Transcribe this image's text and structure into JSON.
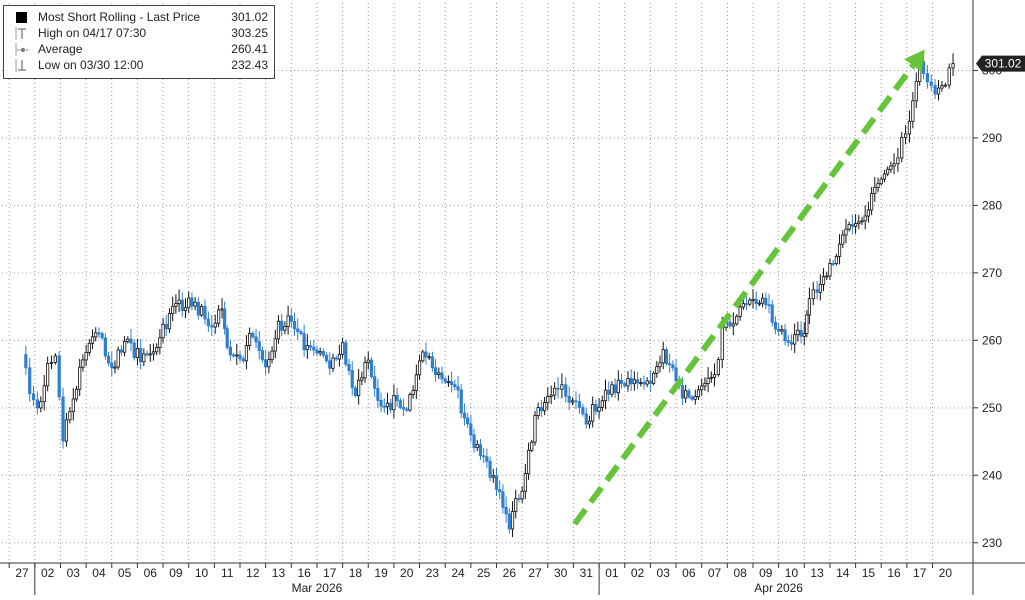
{
  "legend": {
    "series_label": "Most Short Rolling - Last Price",
    "series_value": "301.02",
    "high_label": "High on 04/17 07:30",
    "high_value": "303.25",
    "avg_label": "Average",
    "avg_value": "260.41",
    "low_label": "Low on 03/30 12:00",
    "low_value": "232.43"
  },
  "last_price_tag": "301.02",
  "colors": {
    "up_candle": "#111111",
    "down_candle": "#2f7fd0",
    "arrow": "#66c43a",
    "grid": "#9a9a9a",
    "tag_bg": "#222222"
  },
  "chart_data": {
    "type": "line",
    "title": "",
    "xlabel": "",
    "ylabel": "",
    "ylim": [
      227,
      310
    ],
    "yticks": [
      230,
      240,
      250,
      260,
      270,
      280,
      290,
      300
    ],
    "x_ticks": [
      "27",
      "02",
      "03",
      "04",
      "05",
      "06",
      "09",
      "10",
      "11",
      "12",
      "13",
      "16",
      "17",
      "18",
      "19",
      "20",
      "23",
      "24",
      "25",
      "26",
      "27",
      "30",
      "31",
      "01",
      "02",
      "03",
      "06",
      "07",
      "08",
      "09",
      "10",
      "13",
      "14",
      "15",
      "16",
      "17",
      "20"
    ],
    "month_labels": [
      {
        "label": "Mar 2026",
        "start_index": 1,
        "end_index": 22
      },
      {
        "label": "Apr 2026",
        "start_index": 23,
        "end_index": 36
      }
    ],
    "series": [
      {
        "name": "Most Short Rolling - Last Price",
        "x": [
          0,
          0.3,
          0.6,
          1.0,
          1.3,
          1.6,
          2.0,
          2.5,
          3.0,
          3.5,
          4.0,
          4.5,
          5.0,
          5.5,
          6.0,
          6.5,
          7.0,
          7.4,
          7.8,
          8.0,
          8.5,
          9.0,
          9.5,
          10.0,
          10.5,
          11.0,
          11.5,
          12.0,
          12.5,
          13.0,
          13.5,
          14.0,
          14.5,
          15.0,
          15.5,
          16.0,
          16.5,
          17.0,
          17.5,
          18.0,
          18.5,
          19.0,
          19.5,
          20.0,
          20.5,
          20.9,
          21.2,
          21.6,
          22.0,
          22.5,
          23.0,
          23.5,
          24.0,
          24.5,
          25.0,
          25.5,
          26.0,
          26.5,
          27.0,
          27.3,
          27.6,
          28.0,
          28.5,
          29.0,
          29.5,
          30.0,
          30.5,
          30.7,
          31.0,
          31.5,
          32.0,
          32.5,
          33.0,
          33.5,
          34.0,
          34.3,
          34.6,
          35.0,
          35.3,
          35.6,
          36.0,
          36.3
        ],
        "values": [
          259,
          251,
          250,
          256,
          257,
          246,
          252,
          259,
          261,
          255,
          260,
          258,
          257,
          262,
          265,
          266,
          264,
          262,
          265,
          258,
          257,
          261,
          256,
          262,
          263,
          259,
          258,
          256,
          259,
          252,
          257,
          250,
          251,
          249,
          258,
          256,
          254,
          252,
          245,
          242,
          238,
          233,
          238,
          248,
          252,
          253,
          252,
          250,
          248,
          251,
          253,
          254,
          254,
          254,
          258,
          254,
          251,
          253,
          254,
          262,
          263,
          264,
          266,
          265,
          262,
          260,
          261,
          266,
          268,
          271,
          276,
          277,
          280,
          284,
          286,
          289,
          292,
          302,
          299,
          297,
          298,
          301.02
        ]
      }
    ],
    "annotation": {
      "type": "arrow",
      "from": {
        "x": 21.55,
        "y": 232.8
      },
      "to": {
        "x": 35.2,
        "y": 303.1
      }
    },
    "grid": true,
    "legend_position": "top-left"
  }
}
